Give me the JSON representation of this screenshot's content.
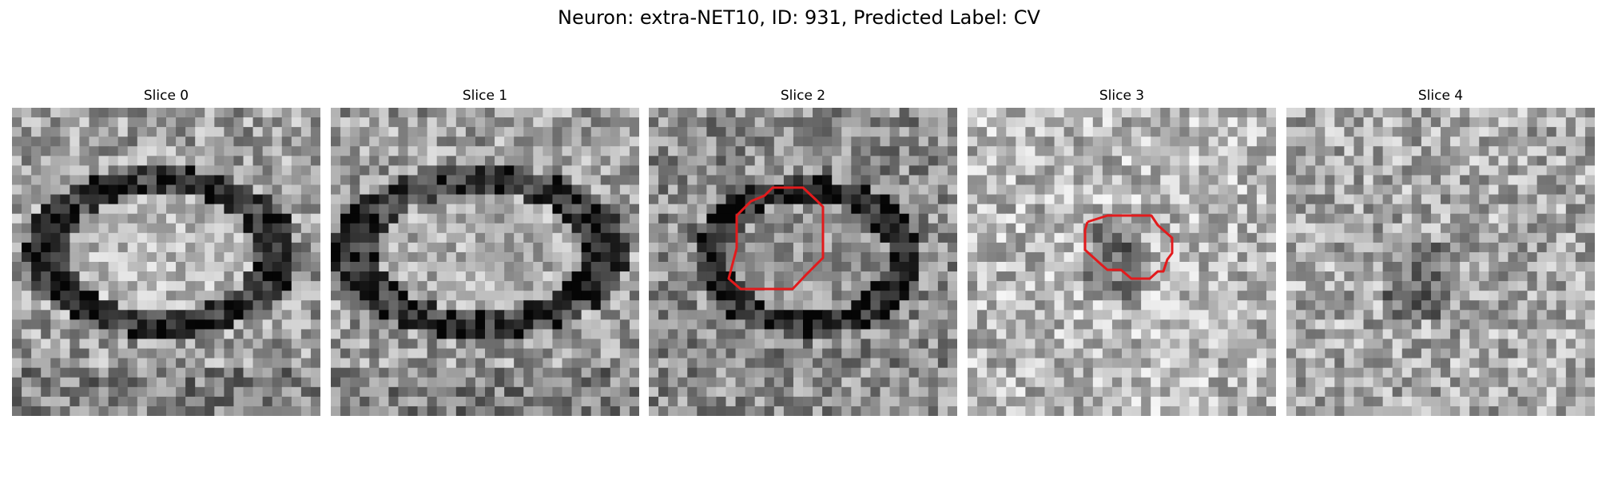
{
  "figure": {
    "title": "Neuron: extra-NET10, ID: 931, Predicted Label: CV"
  },
  "slices": [
    {
      "title": "Slice 0",
      "has_contour": false
    },
    {
      "title": "Slice 1",
      "has_contour": false
    },
    {
      "title": "Slice 2",
      "has_contour": true
    },
    {
      "title": "Slice 3",
      "has_contour": true
    },
    {
      "title": "Slice 4",
      "has_contour": false
    }
  ],
  "colors": {
    "contour": "#e31a1c",
    "background": "#ffffff"
  },
  "colormap": "grayscale"
}
